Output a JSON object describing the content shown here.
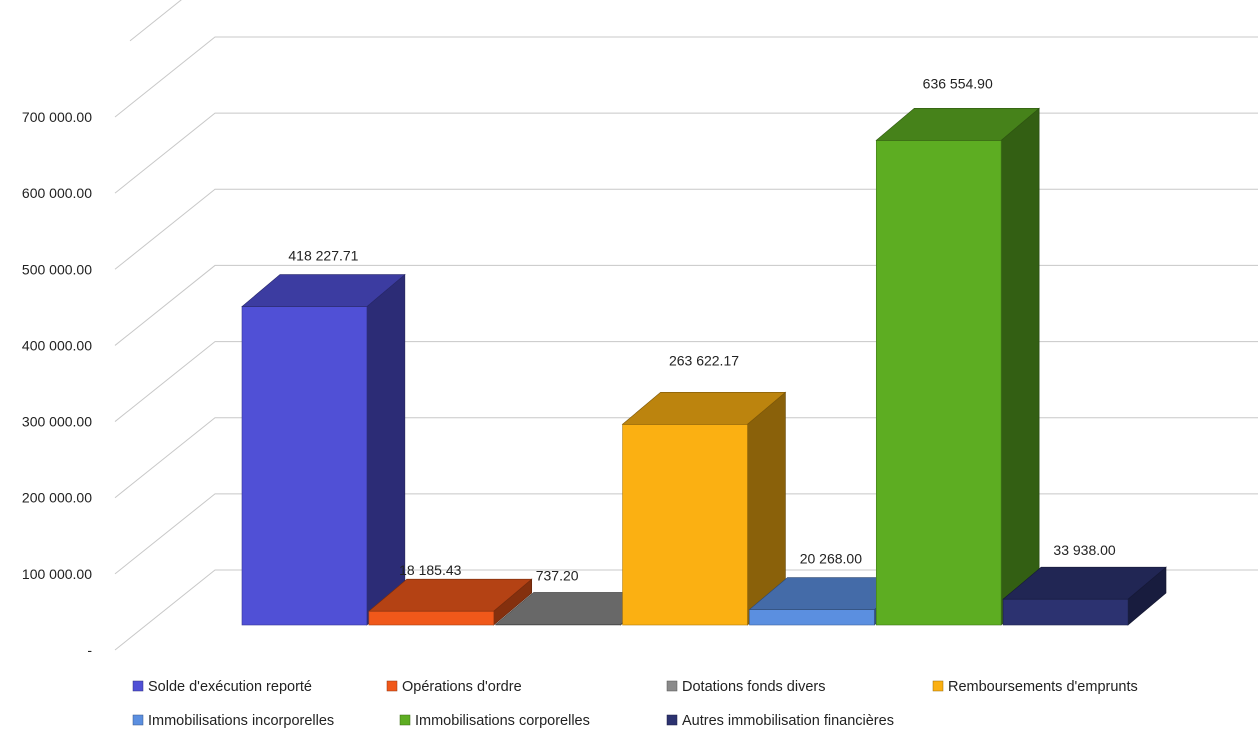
{
  "chart_data": {
    "type": "bar",
    "subtype": "3d-column",
    "title": "",
    "xlabel": "",
    "ylabel": "",
    "ylim": [
      0,
      700000
    ],
    "yticks": [
      0,
      100000,
      200000,
      300000,
      400000,
      500000,
      600000,
      700000
    ],
    "ytick_labels": [
      "-",
      "100 000.00",
      "200 000.00",
      "300 000.00",
      "400 000.00",
      "500 000.00",
      "600 000.00",
      "700 000.00"
    ],
    "grid": true,
    "legend_position": "bottom",
    "series": [
      {
        "name": "Solde d'exécution reporté",
        "value": 418227.71,
        "label": "418 227.71",
        "color": "#5050d6"
      },
      {
        "name": "Opérations d'ordre",
        "value": 18185.43,
        "label": "18 185.43",
        "color": "#f0581a"
      },
      {
        "name": "Dotations fonds divers",
        "value": 737.2,
        "label": "737.20",
        "color": "#8a8a8a"
      },
      {
        "name": "Remboursements d'emprunts",
        "value": 263622.17,
        "label": "263 622.17",
        "color": "#fbb012"
      },
      {
        "name": "Immobilisations incorporelles",
        "value": 20268.0,
        "label": "20 268.00",
        "color": "#5b8fe0"
      },
      {
        "name": "Immobilisations corporelles",
        "value": 636554.9,
        "label": "636 554.90",
        "color": "#5dad22"
      },
      {
        "name": "Autres immobilisation financières",
        "value": 33938.0,
        "label": "33 938.00",
        "color": "#2c3270"
      }
    ]
  }
}
